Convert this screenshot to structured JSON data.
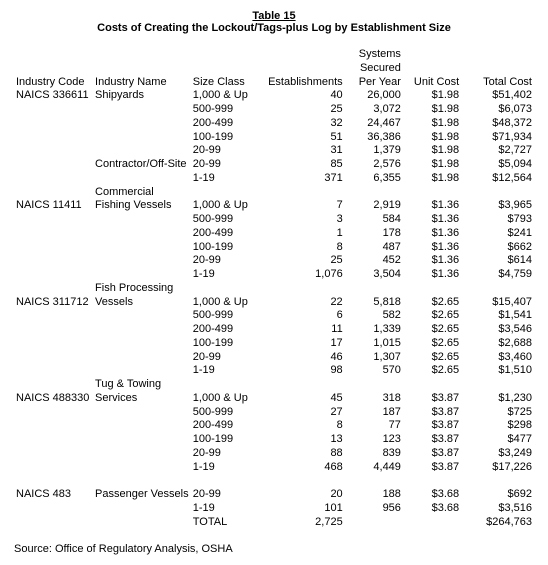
{
  "table_label": "Table 15",
  "title": "Costs of Creating the Lockout/Tags-plus Log by Establishment Size",
  "columns": {
    "industry_code": "Industry Code",
    "industry_name": "Industry Name",
    "size_class": "Size Class",
    "establishments": "Establishments",
    "systems_secured_l1": "Systems",
    "systems_secured_l2": "Secured",
    "systems_secured_l3": "Per Year",
    "unit_cost": "Unit Cost",
    "total_cost": "Total Cost"
  },
  "groups": [
    {
      "code": "NAICS 336611",
      "name": "Shipyards",
      "rows": [
        {
          "size": "1,000 & Up",
          "est": "40",
          "sys": "26,000",
          "unit": "$1.98",
          "total": "$51,402"
        },
        {
          "size": "500-999",
          "est": "25",
          "sys": "3,072",
          "unit": "$1.98",
          "total": "$6,073"
        },
        {
          "size": "200-499",
          "est": "32",
          "sys": "24,467",
          "unit": "$1.98",
          "total": "$48,372"
        },
        {
          "size": "100-199",
          "est": "51",
          "sys": "36,386",
          "unit": "$1.98",
          "total": "$71,934"
        },
        {
          "size": "20-99",
          "est": "31",
          "sys": "1,379",
          "unit": "$1.98",
          "total": "$2,727"
        }
      ],
      "sub": {
        "name": "Contractor/Off-Site",
        "rows": [
          {
            "size": "20-99",
            "est": "85",
            "sys": "2,576",
            "unit": "$1.98",
            "total": "$5,094"
          },
          {
            "size": "1-19",
            "est": "371",
            "sys": "6,355",
            "unit": "$1.98",
            "total": "$12,564"
          }
        ]
      }
    },
    {
      "code": "NAICS 11411",
      "name_l1": "Commercial",
      "name_l2": "Fishing Vessels",
      "rows": [
        {
          "size": "1,000 & Up",
          "est": "7",
          "sys": "2,919",
          "unit": "$1.36",
          "total": "$3,965"
        },
        {
          "size": "500-999",
          "est": "3",
          "sys": "584",
          "unit": "$1.36",
          "total": "$793"
        },
        {
          "size": "200-499",
          "est": "1",
          "sys": "178",
          "unit": "$1.36",
          "total": "$241"
        },
        {
          "size": "100-199",
          "est": "8",
          "sys": "487",
          "unit": "$1.36",
          "total": "$662"
        },
        {
          "size": "20-99",
          "est": "25",
          "sys": "452",
          "unit": "$1.36",
          "total": "$614"
        },
        {
          "size": "1-19",
          "est": "1,076",
          "sys": "3,504",
          "unit": "$1.36",
          "total": "$4,759"
        }
      ]
    },
    {
      "code": "NAICS 311712",
      "name_l1": "Fish Processing",
      "name_l2": "Vessels",
      "rows": [
        {
          "size": "1,000 & Up",
          "est": "22",
          "sys": "5,818",
          "unit": "$2.65",
          "total": "$15,407"
        },
        {
          "size": "500-999",
          "est": "6",
          "sys": "582",
          "unit": "$2.65",
          "total": "$1,541"
        },
        {
          "size": "200-499",
          "est": "11",
          "sys": "1,339",
          "unit": "$2.65",
          "total": "$3,546"
        },
        {
          "size": "100-199",
          "est": "17",
          "sys": "1,015",
          "unit": "$2.65",
          "total": "$2,688"
        },
        {
          "size": "20-99",
          "est": "46",
          "sys": "1,307",
          "unit": "$2.65",
          "total": "$3,460"
        },
        {
          "size": "1-19",
          "est": "98",
          "sys": "570",
          "unit": "$2.65",
          "total": "$1,510"
        }
      ]
    },
    {
      "code": "NAICS 488330",
      "name_l1": "Tug & Towing",
      "name_l2": "Services",
      "rows": [
        {
          "size": "1,000 & Up",
          "est": "45",
          "sys": "318",
          "unit": "$3.87",
          "total": "$1,230"
        },
        {
          "size": "500-999",
          "est": "27",
          "sys": "187",
          "unit": "$3.87",
          "total": "$725"
        },
        {
          "size": "200-499",
          "est": "8",
          "sys": "77",
          "unit": "$3.87",
          "total": "$298"
        },
        {
          "size": "100-199",
          "est": "13",
          "sys": "123",
          "unit": "$3.87",
          "total": "$477"
        },
        {
          "size": "20-99",
          "est": "88",
          "sys": "839",
          "unit": "$3.87",
          "total": "$3,249"
        },
        {
          "size": "1-19",
          "est": "468",
          "sys": "4,449",
          "unit": "$3.87",
          "total": "$17,226"
        }
      ]
    },
    {
      "code": "NAICS 483",
      "name": "Passenger Vessels",
      "rows": [
        {
          "size": "20-99",
          "est": "20",
          "sys": "188",
          "unit": "$3.68",
          "total": "$692"
        },
        {
          "size": "1-19",
          "est": "101",
          "sys": "956",
          "unit": "$3.68",
          "total": "$3,516"
        }
      ]
    }
  ],
  "total_row": {
    "label": "TOTAL",
    "est": "2,725",
    "total": "$264,763"
  },
  "source": "Source:  Office of Regulatory Analysis, OSHA"
}
